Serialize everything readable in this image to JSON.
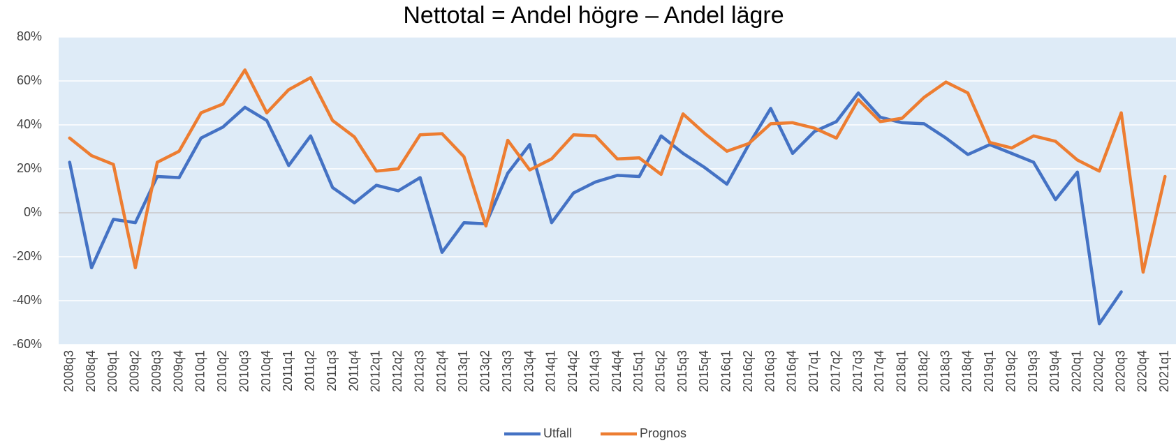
{
  "chart_data": {
    "type": "line",
    "title": "Nettotal = Andel högre – Andel lägre",
    "categories": [
      "2008q3",
      "2008q4",
      "2009q1",
      "2009q2",
      "2009q3",
      "2009q4",
      "2010q1",
      "2010q2",
      "2010q3",
      "2010q4",
      "2011q1",
      "2011q2",
      "2011q3",
      "2011q4",
      "2012q1",
      "2012q2",
      "2012q3",
      "2012q4",
      "2013q1",
      "2013q2",
      "2013q3",
      "2013q4",
      "2014q1",
      "2014q2",
      "2014q3",
      "2014q4",
      "2015q1",
      "2015q2",
      "2015q3",
      "2015q4",
      "2016q1",
      "2016q2",
      "2016q3",
      "2016q4",
      "2017q1",
      "2017q2",
      "2017q3",
      "2017q4",
      "2018q1",
      "2018q2",
      "2018q3",
      "2018q4",
      "2019q1",
      "2019q2",
      "2019q3",
      "2019q4",
      "2020q1",
      "2020q2",
      "2020q3",
      "2020q4",
      "2021q1"
    ],
    "series": [
      {
        "name": "Utfall",
        "color": "#4472c4",
        "values": [
          23,
          -25,
          -3,
          -4.5,
          16.5,
          16,
          34,
          39,
          48,
          42,
          21.5,
          35,
          11.5,
          4.5,
          12.5,
          10,
          16,
          -18,
          -4.5,
          -5,
          18,
          31,
          -4.5,
          9,
          14,
          17,
          16.5,
          35,
          27,
          20.5,
          13,
          31,
          47.5,
          27,
          37,
          41.5,
          54.5,
          43.5,
          41,
          40.5,
          34,
          26.5,
          31,
          27,
          23,
          6,
          18.5,
          -50.5,
          -36,
          null,
          null
        ]
      },
      {
        "name": "Prognos",
        "color": "#ed7d31",
        "values": [
          34,
          26,
          22,
          -25,
          23,
          28,
          45.5,
          49.5,
          65,
          45.5,
          56,
          61.5,
          42,
          34.5,
          19,
          20,
          35.5,
          36,
          25.5,
          -6,
          33,
          19.5,
          24.5,
          35.5,
          35,
          24.5,
          25,
          17.5,
          45,
          36,
          28,
          31.5,
          40.5,
          41,
          38.5,
          34,
          51.5,
          41.5,
          43,
          52.5,
          59.5,
          54.5,
          32,
          29.5,
          35,
          32.5,
          24,
          19,
          45.5,
          -27,
          16.5
        ]
      }
    ],
    "ylim": [
      -60,
      80
    ],
    "yticks": [
      {
        "value": -60,
        "label": "-60%"
      },
      {
        "value": -40,
        "label": "-40%"
      },
      {
        "value": -20,
        "label": "-20%"
      },
      {
        "value": 0,
        "label": "0%"
      },
      {
        "value": 20,
        "label": "20%"
      },
      {
        "value": 40,
        "label": "40%"
      },
      {
        "value": 60,
        "label": "60%"
      },
      {
        "value": 80,
        "label": "80%"
      }
    ],
    "grid": true,
    "legend": "bottom"
  }
}
